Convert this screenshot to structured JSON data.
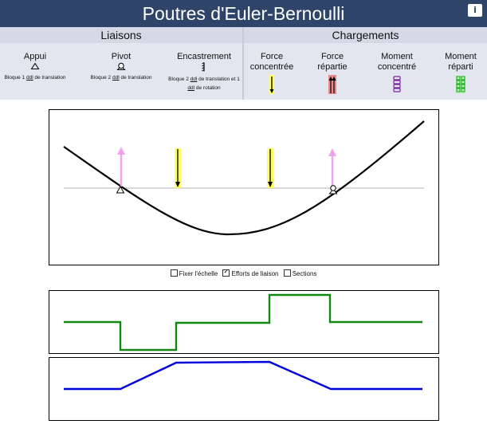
{
  "header": {
    "title": "Poutres d'Euler-Bernoulli",
    "info_label": "i"
  },
  "liaisons": {
    "title": "Liaisons",
    "items": [
      {
        "name": "Appui",
        "desc_a": "Bloque 1 ",
        "desc_u": "ddl",
        "desc_b": " de translation",
        "desc_c": ""
      },
      {
        "name": "Pivot",
        "desc_a": "Bloque 2 ",
        "desc_u": "ddl",
        "desc_b": " de translation",
        "desc_c": ""
      },
      {
        "name": "Encastrement",
        "desc_a": "Bloque 2 ",
        "desc_u": "ddl",
        "desc_b": " de translation et 1",
        "desc_c": "de rotation",
        "desc_c_u": "ddl"
      }
    ]
  },
  "chargements": {
    "title": "Chargements",
    "items": [
      {
        "line1": "Force",
        "line2": "concentrée"
      },
      {
        "line1": "Force",
        "line2": "répartie"
      },
      {
        "line1": "Moment",
        "line2": "concentré"
      },
      {
        "line1": "Moment",
        "line2": "réparti"
      }
    ]
  },
  "options": {
    "fix_scale": {
      "label": "Fixer l'échelle",
      "checked": false
    },
    "reactions": {
      "label": "Efforts de liaison",
      "checked": true
    },
    "sections": {
      "label": "Sections",
      "checked": false
    }
  },
  "colors": {
    "header_bg": "#2e4468",
    "panel_bg": "#e3e6ef",
    "deflection": "#000000",
    "reaction_arrow": "#f0a3ea",
    "load_highlight": "#ffff66",
    "shear": "#118811",
    "moment": "#0000dd",
    "moment_icon": "#7a1fa0",
    "dist_moment_icon": "#11aa11",
    "dist_force_icon": "#e88888"
  }
}
